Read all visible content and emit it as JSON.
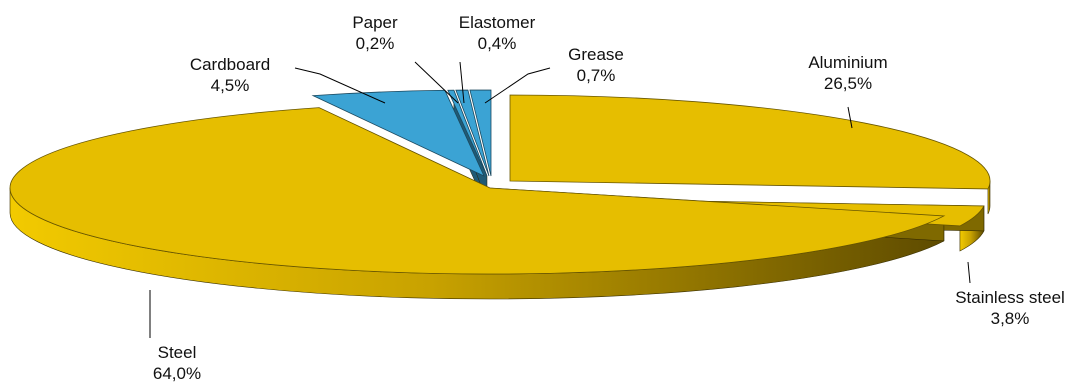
{
  "chart_data": {
    "type": "pie",
    "style": "3d-exploded",
    "title": "",
    "legend": "none",
    "slices": [
      {
        "name": "Aluminium",
        "value": 26.5,
        "label": "26,5%",
        "color": "#E6BE00"
      },
      {
        "name": "Stainless steel",
        "value": 3.8,
        "label": "3,8%",
        "color": "#E6BE00"
      },
      {
        "name": "Steel",
        "value": 64.0,
        "label": "64,0%",
        "color": "#E6BE00"
      },
      {
        "name": "Cardboard",
        "value": 4.5,
        "label": "4,5%",
        "color": "#3BA3D4"
      },
      {
        "name": "Paper",
        "value": 0.2,
        "label": "0,2%",
        "color": "#3BA3D4"
      },
      {
        "name": "Elastomer",
        "value": 0.4,
        "label": "0,4%",
        "color": "#3BA3D4"
      },
      {
        "name": "Grease",
        "value": 0.7,
        "label": "0,7%",
        "color": "#3BA3D4"
      }
    ]
  }
}
